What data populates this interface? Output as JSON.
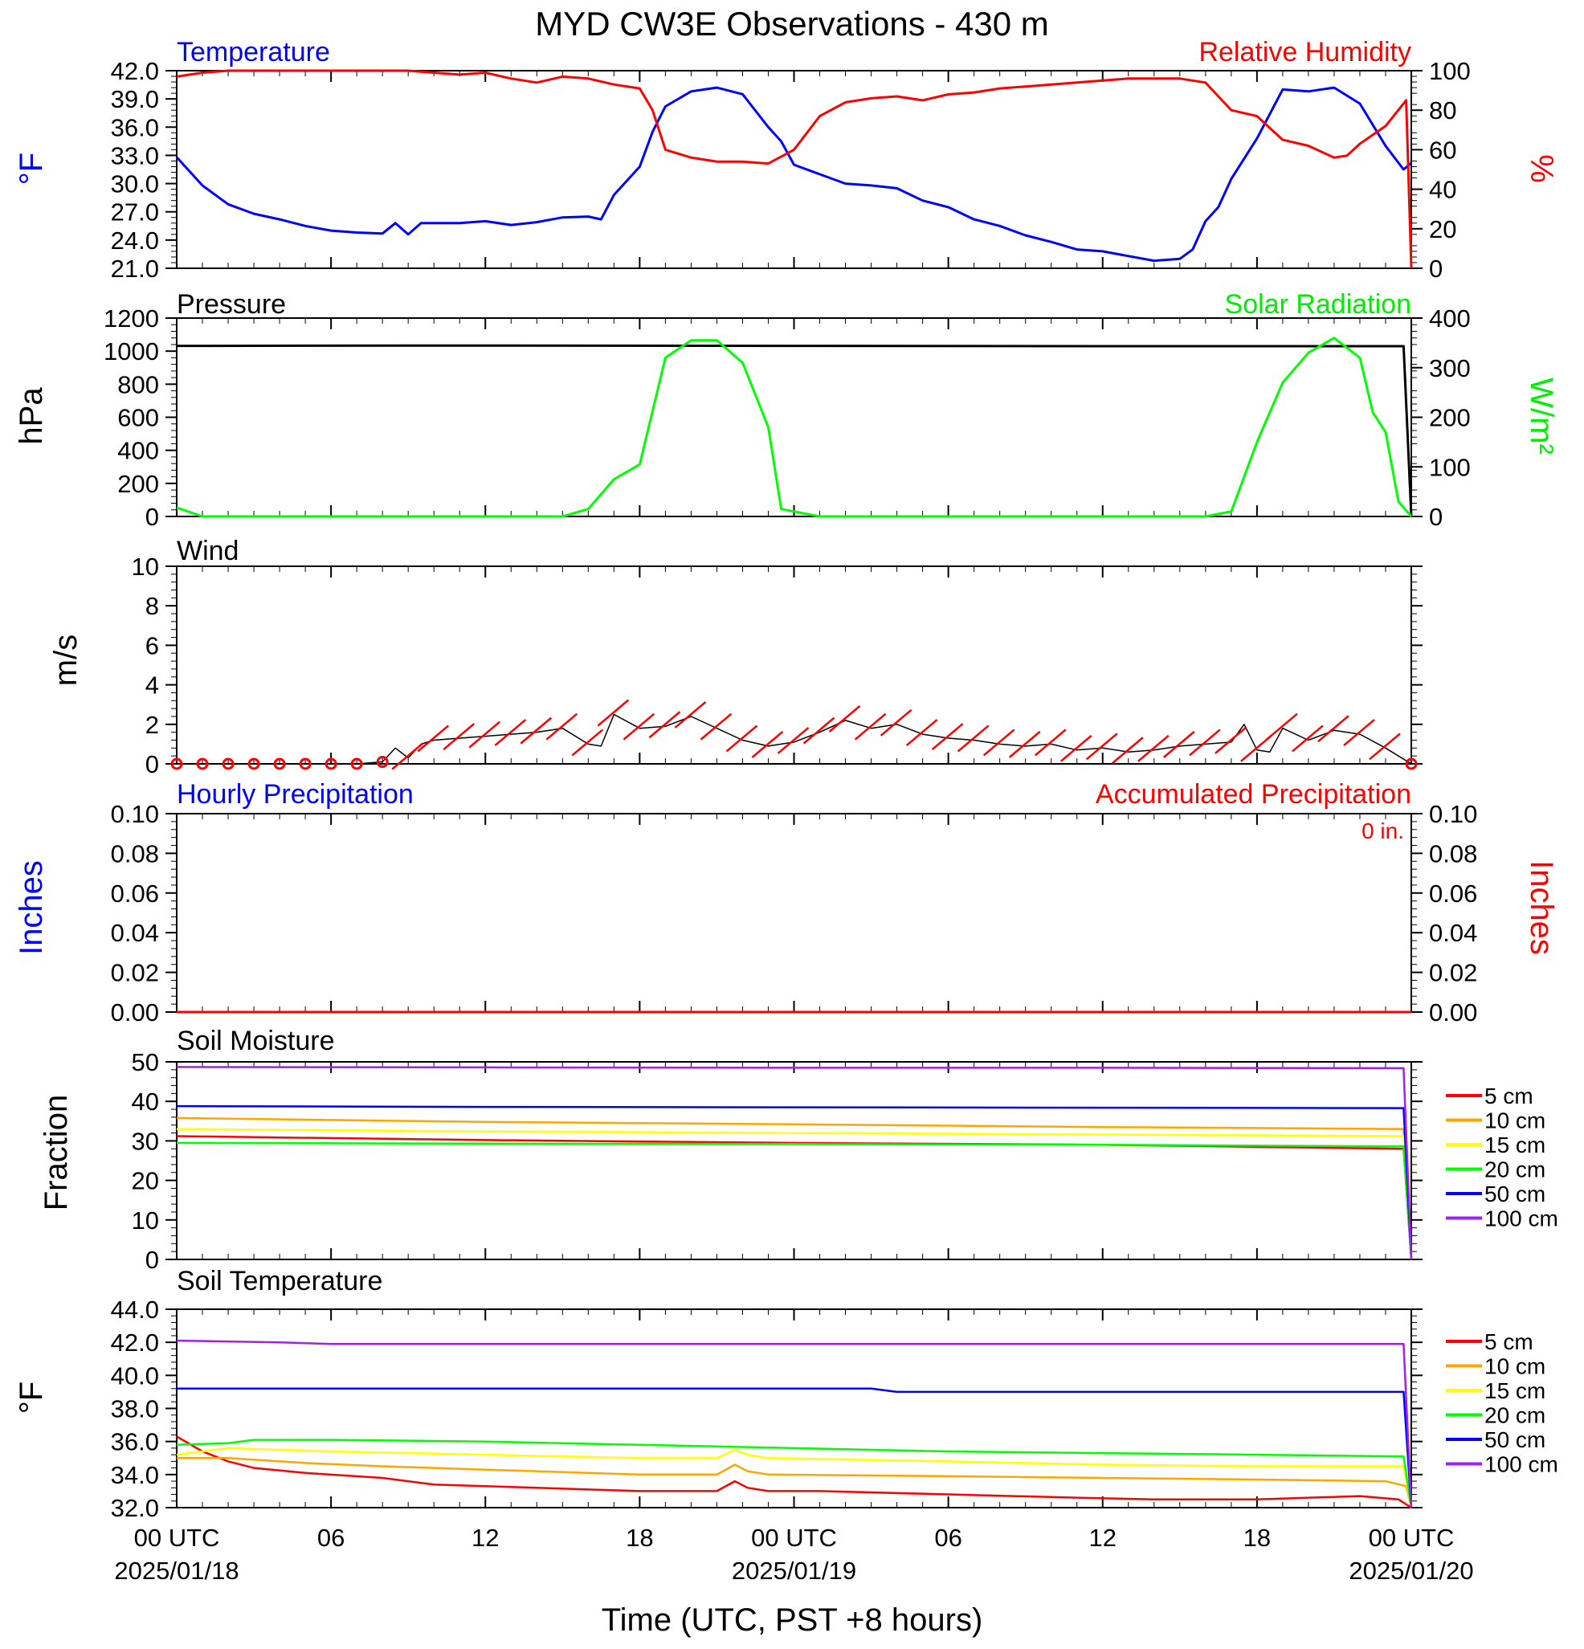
{
  "title": "MYD CW3E Observations - 430 m",
  "x_axis": {
    "title": "Time (UTC, PST +8 hours)",
    "tick_hours": [
      0,
      6,
      12,
      18,
      24,
      30,
      36,
      42,
      48
    ],
    "tick_labels": [
      "00 UTC",
      "06",
      "12",
      "18",
      "00 UTC",
      "06",
      "12",
      "18",
      "00 UTC"
    ],
    "date_labels": [
      {
        "hour": 0,
        "text": "2025/01/18"
      },
      {
        "hour": 24,
        "text": "2025/01/19"
      },
      {
        "hour": 48,
        "text": "2025/01/20"
      }
    ],
    "range_hours": [
      0,
      48
    ]
  },
  "colors": {
    "temperature": "#0000ff",
    "humidity": "#ff0000",
    "pressure": "#000000",
    "solar": "#00ff00",
    "wind_line": "#000000",
    "wind_barb": "#ff0000",
    "precip_hourly": "#0000ff",
    "precip_accum": "#ff0000",
    "soil_5cm": "#ff0000",
    "soil_10cm": "#ffa500",
    "soil_15cm": "#ffff00",
    "soil_20cm": "#00ff00",
    "soil_50cm": "#0000ff",
    "soil_100cm": "#a020f0"
  },
  "panels": {
    "temp": {
      "left_title": "Temperature",
      "right_title": "Relative Humidity",
      "left_unit": "°F",
      "right_unit": "%",
      "left_ticks": [
        "42.0",
        "39.0",
        "36.0",
        "33.0",
        "30.0",
        "27.0",
        "24.0",
        "21.0"
      ],
      "right_ticks": [
        "100",
        "80",
        "60",
        "40",
        "20",
        "0"
      ]
    },
    "pressure": {
      "left_title": "Pressure",
      "right_title": "Solar Radiation",
      "left_unit": "hPa",
      "right_unit": "W/m²",
      "left_ticks": [
        "1200",
        "1000",
        "800",
        "600",
        "400",
        "200",
        "0"
      ],
      "right_ticks": [
        "400",
        "300",
        "200",
        "100",
        "0"
      ]
    },
    "wind": {
      "left_title": "Wind",
      "left_unit": "m/s",
      "left_ticks": [
        "10",
        "8",
        "6",
        "4",
        "2",
        "0"
      ]
    },
    "precip": {
      "left_title": "Hourly Precipitation",
      "right_title": "Accumulated Precipitation",
      "accum_total": "0 in.",
      "left_unit": "Inches",
      "right_unit": "Inches",
      "left_ticks": [
        "0.10",
        "0.08",
        "0.06",
        "0.04",
        "0.02",
        "0.00"
      ],
      "right_ticks": [
        "0.10",
        "0.08",
        "0.06",
        "0.04",
        "0.02",
        "0.00"
      ]
    },
    "soilm": {
      "left_title": "Soil Moisture",
      "left_unit": "Fraction",
      "left_ticks": [
        "50",
        "40",
        "30",
        "20",
        "10",
        "0"
      ]
    },
    "soilt": {
      "left_title": "Soil Temperature",
      "left_unit": "°F",
      "left_ticks": [
        "44.0",
        "42.0",
        "40.0",
        "38.0",
        "36.0",
        "34.0",
        "32.0"
      ]
    }
  },
  "legend": [
    "5 cm",
    "10 cm",
    "15 cm",
    "20 cm",
    "50 cm",
    "100 cm"
  ],
  "chart_data": [
    {
      "type": "line",
      "title": "Temperature / Relative Humidity",
      "xlabel": "Time (UTC, PST +8 hours)",
      "ylabel": "°F",
      "ylabel_right": "%",
      "ylim": [
        21,
        42
      ],
      "ylim_right": [
        0,
        100
      ],
      "series": [
        {
          "name": "Temperature",
          "axis": "left",
          "x": [
            0,
            1,
            2,
            3,
            4,
            5,
            6,
            7,
            8,
            8.5,
            9,
            9.5,
            10,
            11,
            12,
            13,
            14,
            15,
            16,
            16.5,
            17,
            18,
            18.5,
            19,
            20,
            21,
            22,
            23,
            23.5,
            24,
            25,
            26,
            27,
            28,
            29,
            30,
            31,
            32,
            33,
            34,
            35,
            36,
            37,
            38,
            39,
            39.5,
            40,
            40.5,
            41,
            42,
            43,
            44,
            45,
            46,
            47,
            47.7,
            48
          ],
          "y": [
            32.8,
            29.8,
            27.8,
            26.8,
            26.2,
            25.5,
            25.0,
            24.8,
            24.7,
            25.8,
            24.6,
            25.8,
            25.8,
            25.8,
            26.0,
            25.6,
            25.9,
            26.4,
            26.5,
            26.2,
            28.8,
            31.8,
            35.5,
            38.2,
            39.8,
            40.2,
            39.5,
            36.0,
            34.5,
            32.0,
            31.0,
            30.0,
            29.8,
            29.5,
            28.2,
            27.5,
            26.2,
            25.5,
            24.5,
            23.8,
            23.0,
            22.8,
            22.3,
            21.8,
            22.0,
            23.0,
            26.0,
            27.5,
            30.5,
            34.8,
            40.0,
            39.8,
            40.2,
            38.5,
            34.0,
            31.5,
            32.2
          ]
        },
        {
          "name": "Relative Humidity",
          "axis": "right",
          "x": [
            0,
            1,
            2,
            3,
            4,
            5,
            6,
            7,
            8,
            9,
            10,
            11,
            12,
            13,
            14,
            15,
            16,
            17,
            18,
            18.5,
            19,
            20,
            21,
            22,
            23,
            24,
            25,
            26,
            27,
            28,
            29,
            30,
            31,
            32,
            33,
            34,
            35,
            36,
            37,
            38,
            39,
            40,
            40.5,
            41,
            42,
            43,
            44,
            45,
            45.5,
            46,
            47,
            47.8,
            48
          ],
          "y": [
            97,
            99,
            100,
            100,
            100,
            100,
            100,
            100,
            100,
            100,
            99,
            98,
            99,
            96,
            94,
            97,
            96,
            93,
            91,
            80,
            60,
            56,
            54,
            54,
            53,
            60,
            77,
            84,
            86,
            87,
            85,
            88,
            89,
            91,
            92,
            93,
            94,
            95,
            96,
            96,
            96,
            94,
            87,
            80,
            77,
            65,
            62,
            56,
            57,
            63,
            72,
            85,
            0
          ]
        }
      ]
    },
    {
      "type": "line",
      "title": "Pressure / Solar Radiation",
      "xlabel": "Time (UTC, PST +8 hours)",
      "ylabel": "hPa",
      "ylabel_right": "W/m²",
      "ylim": [
        0,
        1200
      ],
      "ylim_right": [
        0,
        400
      ],
      "series": [
        {
          "name": "Pressure",
          "axis": "left",
          "x": [
            0,
            12,
            24,
            36,
            47.7,
            48
          ],
          "y": [
            1032,
            1034,
            1032,
            1030,
            1030,
            0
          ]
        },
        {
          "name": "Solar Radiation",
          "axis": "right",
          "x": [
            0,
            1,
            15,
            16,
            17,
            18,
            19,
            20,
            21,
            22,
            23,
            23.5,
            24,
            25,
            40,
            41,
            42,
            43,
            44,
            45,
            46,
            46.5,
            47,
            47.5,
            48
          ],
          "y": [
            18,
            0,
            0,
            15,
            75,
            105,
            320,
            355,
            355,
            310,
            180,
            15,
            10,
            0,
            0,
            10,
            150,
            270,
            330,
            360,
            320,
            210,
            170,
            30,
            0
          ]
        }
      ]
    },
    {
      "type": "line",
      "title": "Wind",
      "xlabel": "Time (UTC, PST +8 hours)",
      "ylabel": "m/s",
      "ylim": [
        0,
        10
      ],
      "series": [
        {
          "name": "Wind",
          "x": [
            0,
            1,
            2,
            3,
            4,
            5,
            6,
            7,
            8,
            8.5,
            9,
            9.5,
            10,
            11,
            12,
            13,
            14,
            15,
            16,
            16.5,
            17,
            18,
            19,
            20,
            21,
            22,
            23,
            24,
            25,
            26,
            27,
            28,
            29,
            30,
            31,
            32,
            33,
            34,
            35,
            36,
            37,
            38,
            39,
            40,
            41,
            41.5,
            42,
            42.5,
            43,
            44,
            45,
            46,
            47,
            48
          ],
          "y": [
            0,
            0,
            0,
            0,
            0,
            0,
            0,
            0,
            0.1,
            0.8,
            0.3,
            1.0,
            1.2,
            1.3,
            1.4,
            1.5,
            1.6,
            1.8,
            1.0,
            0.9,
            2.5,
            1.8,
            1.9,
            2.4,
            1.8,
            1.2,
            0.9,
            1.1,
            1.6,
            2.2,
            1.8,
            2.0,
            1.5,
            1.3,
            1.2,
            1.0,
            0.9,
            1.0,
            0.7,
            0.8,
            0.6,
            0.7,
            0.9,
            1.0,
            1.1,
            2.0,
            0.7,
            0.6,
            1.8,
            1.2,
            1.7,
            1.5,
            0.8,
            0
          ]
        }
      ]
    },
    {
      "type": "line",
      "title": "Hourly / Accumulated Precipitation",
      "xlabel": "Time (UTC, PST +8 hours)",
      "ylabel": "Inches",
      "ylabel_right": "Inches",
      "ylim": [
        0,
        0.1
      ],
      "ylim_right": [
        0,
        0.1
      ],
      "series": [
        {
          "name": "Hourly Precipitation",
          "axis": "left",
          "x": [
            0,
            48
          ],
          "y": [
            0,
            0
          ]
        },
        {
          "name": "Accumulated Precipitation",
          "axis": "right",
          "x": [
            0,
            48
          ],
          "y": [
            0,
            0
          ]
        }
      ]
    },
    {
      "type": "line",
      "title": "Soil Moisture",
      "xlabel": "Time (UTC, PST +8 hours)",
      "ylabel": "Fraction",
      "ylim": [
        0,
        50
      ],
      "series": [
        {
          "name": "5 cm",
          "x": [
            0,
            12,
            24,
            36,
            47.7,
            48
          ],
          "y": [
            31.2,
            30.2,
            29.5,
            29.0,
            28.0,
            0
          ]
        },
        {
          "name": "10 cm",
          "x": [
            0,
            12,
            24,
            36,
            47.7,
            48
          ],
          "y": [
            35.8,
            34.8,
            34.2,
            33.5,
            33.0,
            0
          ]
        },
        {
          "name": "15 cm",
          "x": [
            0,
            12,
            24,
            36,
            47.7,
            48
          ],
          "y": [
            33.0,
            32.4,
            32.0,
            31.6,
            31.2,
            0
          ]
        },
        {
          "name": "20 cm",
          "x": [
            0,
            12,
            24,
            36,
            47.7,
            48
          ],
          "y": [
            29.5,
            29.3,
            29.2,
            29.0,
            28.6,
            0
          ]
        },
        {
          "name": "50 cm",
          "x": [
            0,
            12,
            24,
            36,
            47.7,
            48
          ],
          "y": [
            38.8,
            38.6,
            38.5,
            38.4,
            38.3,
            0
          ]
        },
        {
          "name": "100 cm",
          "x": [
            0,
            12,
            24,
            36,
            47.7,
            48
          ],
          "y": [
            48.7,
            48.6,
            48.5,
            48.5,
            48.4,
            0
          ]
        }
      ]
    },
    {
      "type": "line",
      "title": "Soil Temperature",
      "xlabel": "Time (UTC, PST +8 hours)",
      "ylabel": "°F",
      "ylim": [
        32,
        44
      ],
      "series": [
        {
          "name": "5 cm",
          "x": [
            0,
            1,
            2,
            3,
            5,
            8,
            10,
            14,
            18,
            21,
            21.7,
            22.2,
            23,
            25,
            30,
            35,
            38,
            42,
            46,
            47.5,
            48
          ],
          "y": [
            36.3,
            35.4,
            34.8,
            34.4,
            34.1,
            33.8,
            33.4,
            33.2,
            33.0,
            33.0,
            33.6,
            33.2,
            33.0,
            33.0,
            32.8,
            32.6,
            32.5,
            32.5,
            32.7,
            32.5,
            32.0
          ]
        },
        {
          "name": "10 cm",
          "x": [
            0,
            2,
            5,
            8,
            12,
            18,
            21,
            21.7,
            22.2,
            23,
            30,
            36,
            42,
            47,
            47.8,
            48
          ],
          "y": [
            35.0,
            35.0,
            34.7,
            34.5,
            34.3,
            34.0,
            34.0,
            34.6,
            34.2,
            34.0,
            33.9,
            33.8,
            33.7,
            33.6,
            33.3,
            32.0
          ]
        },
        {
          "name": "15 cm",
          "x": [
            0,
            2,
            6,
            12,
            18,
            21,
            21.7,
            22.2,
            23,
            30,
            36,
            42,
            47.7,
            48
          ],
          "y": [
            35.2,
            35.6,
            35.4,
            35.2,
            35.0,
            35.0,
            35.5,
            35.2,
            35.0,
            34.8,
            34.6,
            34.5,
            34.5,
            32.0
          ]
        },
        {
          "name": "20 cm",
          "x": [
            0,
            2,
            3,
            6,
            12,
            18,
            24,
            30,
            36,
            42,
            47.7,
            48
          ],
          "y": [
            35.8,
            35.9,
            36.1,
            36.1,
            36.0,
            35.8,
            35.6,
            35.4,
            35.3,
            35.2,
            35.1,
            32.0
          ]
        },
        {
          "name": "50 cm",
          "x": [
            0,
            12,
            24,
            27,
            28,
            36,
            47.7,
            48
          ],
          "y": [
            39.2,
            39.2,
            39.2,
            39.2,
            39.0,
            39.0,
            39.0,
            32.0
          ]
        },
        {
          "name": "100 cm",
          "x": [
            0,
            4,
            6,
            12,
            24,
            36,
            47.7,
            48
          ],
          "y": [
            42.1,
            42.0,
            41.9,
            41.9,
            41.9,
            41.9,
            41.9,
            32.0
          ]
        }
      ]
    }
  ]
}
